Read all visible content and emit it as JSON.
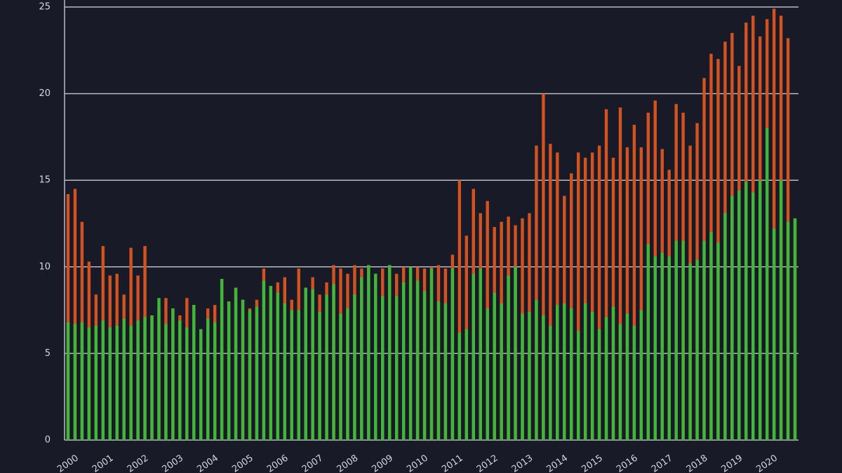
{
  "chart_data": {
    "type": "bar",
    "categories": [
      "2000",
      null,
      null,
      null,
      null,
      "2001",
      null,
      null,
      null,
      null,
      "2002",
      null,
      null,
      null,
      null,
      "2003",
      null,
      null,
      null,
      null,
      "2004",
      null,
      null,
      null,
      null,
      "2005",
      null,
      null,
      null,
      null,
      "2006",
      null,
      null,
      null,
      null,
      "2007",
      null,
      null,
      null,
      null,
      "2008",
      null,
      null,
      null,
      null,
      "2009",
      null,
      null,
      null,
      null,
      "2010",
      null,
      null,
      null,
      null,
      "2011",
      null,
      null,
      null,
      null,
      "2012",
      null,
      null,
      null,
      null,
      "2013",
      null,
      null,
      null,
      null,
      "2014",
      null,
      null,
      null,
      null,
      "2015",
      null,
      null,
      null,
      null,
      "2016",
      null,
      null,
      null,
      null,
      "2017",
      null,
      null,
      null,
      null,
      "2018",
      null,
      null,
      null,
      null,
      "2019",
      null,
      null,
      null,
      null,
      "2020",
      null,
      null,
      null,
      null
    ],
    "series": [
      {
        "color": "#d4521f",
        "values": [
          14.2,
          14.5,
          12.6,
          10.3,
          8.4,
          11.2,
          9.5,
          9.6,
          8.4,
          11.1,
          9.5,
          11.2,
          7.2,
          7.5,
          8.2,
          7.6,
          7.2,
          8.2,
          7.8,
          6.4,
          7.6,
          7.8,
          9.3,
          8.0,
          8.8,
          8.1,
          7.6,
          8.1,
          9.9,
          8.9,
          9.1,
          9.4,
          8.1,
          9.9,
          8.8,
          9.4,
          8.4,
          9.1,
          10.1,
          9.9,
          9.6,
          10.1,
          9.9,
          10.1,
          9.6,
          9.9,
          10.1,
          9.6,
          10.0,
          10.0,
          10.0,
          9.9,
          10.0,
          10.1,
          9.9,
          10.7,
          15.0,
          11.8,
          14.5,
          13.1,
          13.8,
          12.3,
          12.6,
          12.9,
          12.4,
          12.8,
          13.1,
          17.0,
          20.0,
          17.1,
          16.6,
          14.1,
          15.4,
          16.6,
          16.3,
          16.6,
          17.0,
          19.1,
          16.3,
          19.2,
          16.9,
          18.2,
          16.9,
          18.9,
          19.6,
          16.8,
          15.6,
          19.4,
          18.9,
          17.0,
          18.3,
          20.9,
          22.3,
          22.0,
          23.0,
          23.5,
          21.6,
          24.1,
          24.5,
          23.3,
          24.3,
          24.9,
          24.5,
          23.2,
          12.8
        ]
      },
      {
        "color": "#3fb83a",
        "values": [
          6.8,
          6.7,
          6.8,
          6.5,
          6.6,
          6.9,
          6.5,
          6.6,
          7.0,
          6.6,
          6.9,
          7.1,
          7.2,
          8.2,
          6.7,
          7.6,
          6.9,
          6.5,
          7.8,
          6.4,
          7.0,
          6.8,
          9.3,
          8.0,
          8.8,
          8.1,
          7.5,
          7.7,
          9.2,
          8.9,
          8.5,
          7.9,
          7.5,
          7.5,
          8.8,
          8.7,
          7.4,
          8.4,
          9.0,
          7.3,
          7.6,
          8.4,
          9.4,
          10.1,
          9.6,
          8.3,
          10.1,
          8.3,
          9.1,
          10.0,
          9.2,
          8.6,
          9.9,
          8.0,
          7.9,
          9.9,
          6.2,
          6.4,
          9.6,
          9.9,
          7.6,
          8.5,
          7.9,
          9.5,
          10.0,
          7.3,
          7.4,
          8.1,
          7.2,
          6.6,
          7.8,
          7.9,
          7.6,
          6.3,
          7.9,
          7.4,
          6.4,
          7.1,
          7.7,
          6.7,
          7.3,
          6.6,
          7.5,
          11.3,
          10.6,
          10.8,
          10.6,
          11.5,
          11.5,
          10.2,
          10.4,
          11.5,
          12.0,
          11.4,
          13.1,
          14.1,
          14.4,
          14.9,
          14.3,
          15.0,
          18.0,
          12.2,
          15.0,
          12.6,
          12.8
        ]
      }
    ],
    "ylim": [
      0,
      25
    ],
    "yticks": [
      0,
      5,
      10,
      15,
      20,
      25
    ],
    "grid": true
  }
}
